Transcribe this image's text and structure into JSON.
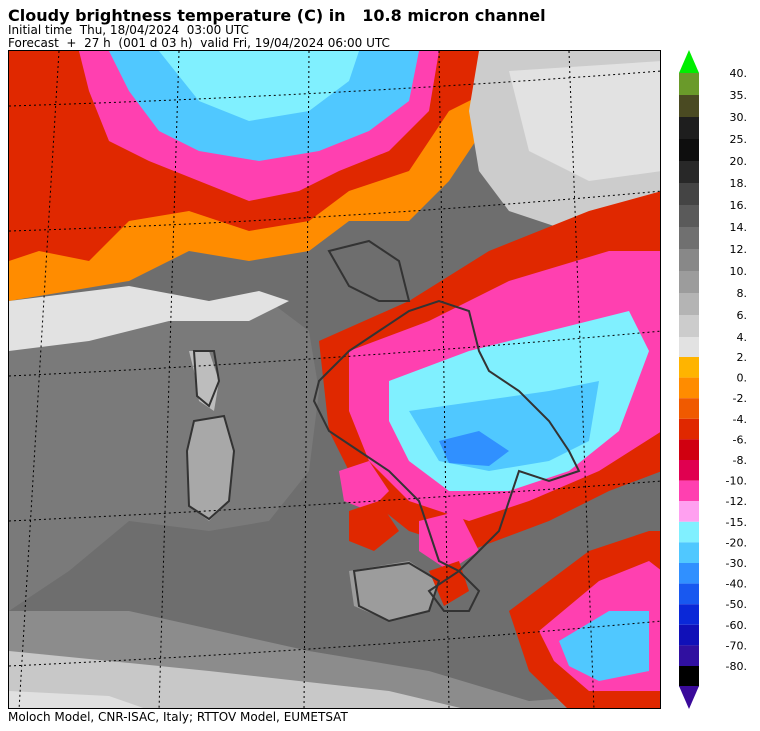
{
  "header": {
    "title": "Cloudy brightness temperature (C) in   10.8 micron channel",
    "initial": "Initial time  Thu, 18/04/2024  03:00 UTC",
    "forecast": "Forecast  +  27 h  (001 d 03 h)  valid Fri, 19/04/2024 06:00 UTC"
  },
  "footer": "Moloch Model, CNR-ISAC, Italy; RTTOV Model, EUMETSAT",
  "colorbar": {
    "warm": [
      {
        "label": "40.",
        "color": "#6a9a2a"
      },
      {
        "label": "35.",
        "color": "#4a4a22"
      },
      {
        "label": "30.",
        "color": "#1e1e1e"
      },
      {
        "label": "25.",
        "color": "#0e0e0e"
      },
      {
        "label": "20.",
        "color": "#282828"
      },
      {
        "label": "18.",
        "color": "#444444"
      },
      {
        "label": "16.",
        "color": "#5a5a5a"
      },
      {
        "label": "14.",
        "color": "#707070"
      },
      {
        "label": "12.",
        "color": "#888888"
      },
      {
        "label": "10.",
        "color": "#9c9c9c"
      },
      {
        "label": "8.",
        "color": "#b4b4b4"
      },
      {
        "label": "6.",
        "color": "#cccccc"
      },
      {
        "label": "4.",
        "color": "#e2e2e2"
      }
    ],
    "cold": [
      {
        "label": "2.",
        "color": "#ffb400"
      },
      {
        "label": "0.",
        "color": "#ff8c00"
      },
      {
        "label": "-2.",
        "color": "#f05a00"
      },
      {
        "label": "-4.",
        "color": "#e02800"
      },
      {
        "label": "-6.",
        "color": "#d00010"
      },
      {
        "label": "-8.",
        "color": "#e00050"
      },
      {
        "label": "-10.",
        "color": "#ff40b0"
      },
      {
        "label": "-12.",
        "color": "#ffa0f0"
      },
      {
        "label": "-15.",
        "color": "#80f0ff"
      },
      {
        "label": "-20.",
        "color": "#50c8ff"
      },
      {
        "label": "-30.",
        "color": "#3090ff"
      },
      {
        "label": "-40.",
        "color": "#1858f0"
      },
      {
        "label": "-50.",
        "color": "#0a28d8"
      },
      {
        "label": "-60.",
        "color": "#1010b8"
      },
      {
        "label": "-70.",
        "color": "#3010a0"
      },
      {
        "label": "-80.",
        "color": "#000000"
      }
    ],
    "top_arrow_color": "#00ee00",
    "bottom_arrow_color": "#3a0a9a"
  }
}
